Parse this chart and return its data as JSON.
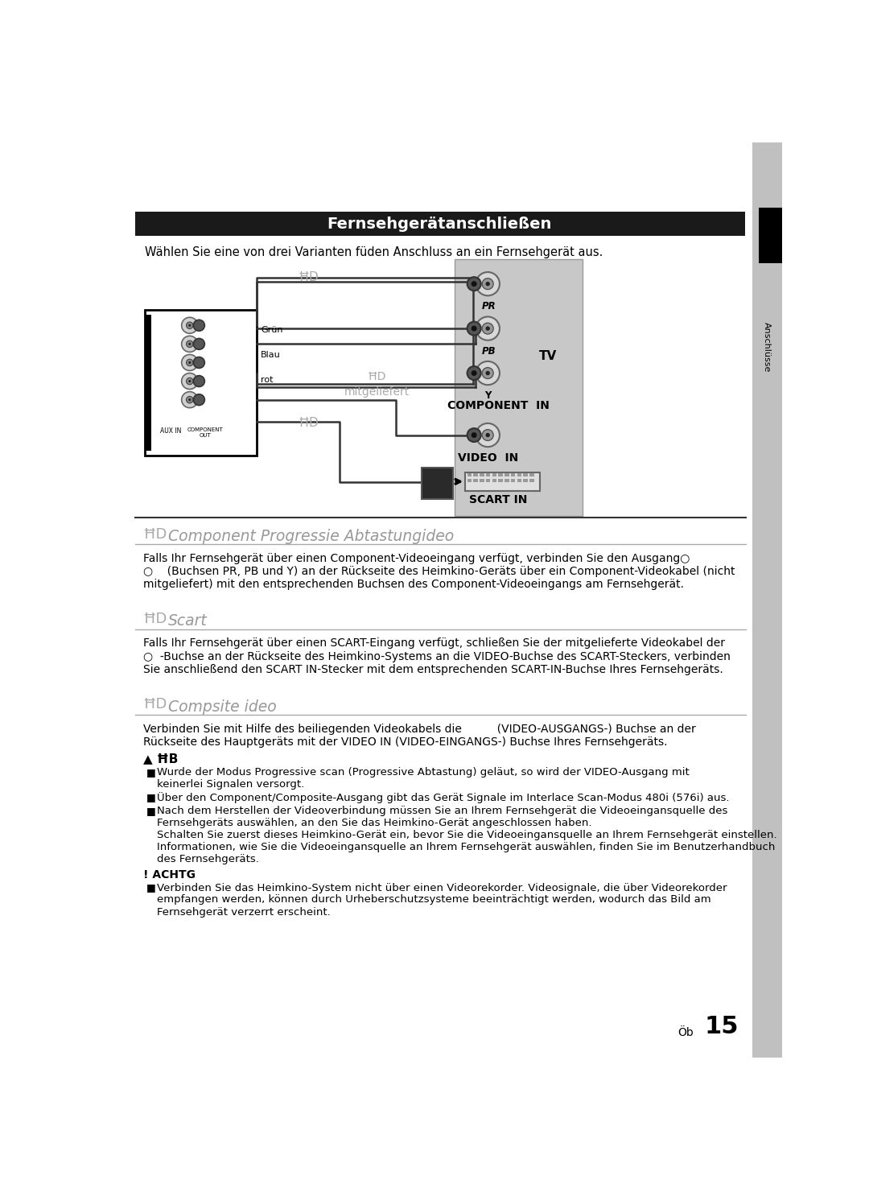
{
  "title": "Fernsehgerätanschließen",
  "subtitle": "Wählen Sie eine von drei Varianten füden Anschluss an ein Fernsehgerät aus.",
  "sidebar_text": "Anschlüsse",
  "section1_title": "Component Progressie Abtastungideo",
  "section1_body": "Falls Ihr Fernsehgerät über einen Component-Videoeingang verfügt, verbinden Sie den Ausgang○\n○    (Buchsen PR, PB und Y) an der Rückseite des Heimkino-Geräts über ein Component-Videokabel (nicht\nmitgeliefert) mit den entsprechenden Buchsen des Component-Videoeingangs am Fernsehgerät.",
  "section2_title": "Scart",
  "section2_body": "Falls Ihr Fernsehgerät über einen SCART-Eingang verfügt, schließen Sie der mitgelieferte Videokabel der\n○  -Buchse an der Rückseite des Heimkino-Systems an die VIDEO-Buchse des SCART-Steckers, verbinden\nSie anschließend den SCART IN-Stecker mit dem entsprechenden SCART-IN-Buchse Ihres Fernsehgeräts.",
  "section3_title": "Compsite ideo",
  "section3_body": "Verbinden Sie mit Hilfe des beiliegenden Videokabels die          (VIDEO-AUSGANGS-) Buchse an der\nRückseite des Hauptgeräts mit der VIDEO IN (VIDEO-EINGANGS-) Buchse Ihres Fernsehgeräts.",
  "note_items": [
    "Wurde der Modus Progressive scan (Progressive Abtastung) geläut, so wird der VIDEO-Ausgang mit\nkeinerlei Signalen versorgt.",
    "Über den Component/Composite-Ausgang gibt das Gerät Signale im Interlace Scan-Modus 480i (576i) aus.",
    "Nach dem Herstellen der Videoverbindung müssen Sie an Ihrem Fernsehgerät die Videoeingansquelle des\nFernsehgeräts auswählen, an den Sie das Heimkino-Gerät angeschlossen haben.\nSchalten Sie zuerst dieses Heimkino-Gerät ein, bevor Sie die Videoeingansquelle an Ihrem Fernsehgerät einstellen.\nInformationen, wie Sie die Videoeingansquelle an Ihrem Fernsehgerät auswählen, finden Sie im Benutzerhandbuch\ndes Fernsehgeräts."
  ],
  "caution_body": "Verbinden Sie das Heimkino-System nicht über einen Videorekorder. Videosignale, die über Videorekorder\nempfangen werden, können durch Urheberschutzsysteme beeinträchtigt werden, wodurch das Bild am\nFernsehgerät verzerrt erscheint.",
  "page_number": "15",
  "page_label": "Öb",
  "diagram_labels": {
    "pr": "PR",
    "pb": "PB",
    "y": "Y",
    "component_in": "COMPONENT  IN",
    "video_in": "VIDEO  IN",
    "scart_in": "SCART IN",
    "tv": "TV",
    "mitgeliefert": "mitgeliefert",
    "rot": "rot",
    "blau": "Blau",
    "gruen": "Grün"
  },
  "colors": {
    "black": "#000000",
    "white": "#ffffff",
    "dark_header": "#1a1a1a",
    "sidebar_gray": "#c0c0c0",
    "tv_panel_gray": "#c8c8c8",
    "line_color": "#333333",
    "section_line": "#aaaaaa"
  },
  "background_color": "#ffffff"
}
